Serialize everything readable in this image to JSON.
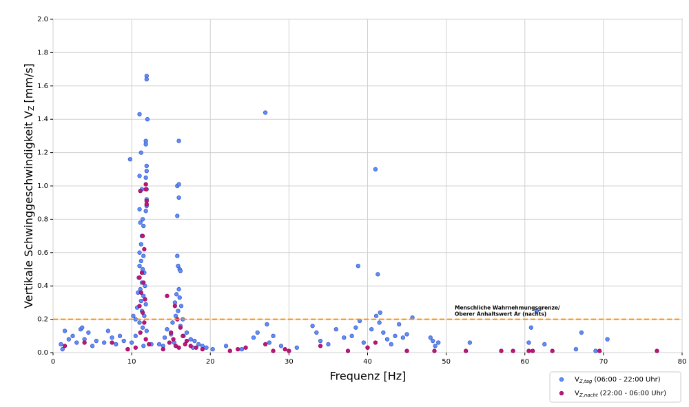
{
  "chart_data": {
    "type": "scatter",
    "x_label": "Frequenz [Hz]",
    "y_label": {
      "text": "Vertikale Schwinggeschwindigkeit V",
      "sub": "Z",
      "unit": "[mm/s]"
    },
    "xlim": [
      0,
      80
    ],
    "xticks": [
      0,
      10,
      20,
      30,
      40,
      50,
      60,
      70,
      80
    ],
    "ylim": [
      0,
      2
    ],
    "yticks": [
      {
        "value": 0,
        "label": "0.0"
      },
      0.2,
      0.4,
      0.6,
      0.8,
      {
        "value": 1,
        "label": "1.0"
      },
      1.2,
      1.4,
      1.6,
      1.8,
      {
        "value": 2,
        "label": "2.0"
      }
    ],
    "grid": true,
    "legend": "below right",
    "threshold": {
      "value": 0.2,
      "color": "#ff8c00",
      "label": [
        "Menschliche Wahrnehmungsgrenze/",
        "Oberer Anhaltswert Ar (nachts)"
      ]
    },
    "series": [
      {
        "name": "V",
        "name_sub": "Z,tag",
        "name_suffix": "(06:00 - 22:00 Uhr)",
        "color": "#5b8ff9",
        "edge": "#3a4fc0",
        "x": [
          11,
          11.9,
          11.9,
          12,
          11.8,
          11.8,
          9.8,
          11.2,
          11.9,
          11.9,
          11.8,
          11.9,
          11.9,
          11.9,
          11.8,
          11,
          11.3,
          11,
          11.4,
          11.5,
          11.1,
          11.3,
          11.2,
          11,
          11.5,
          11.2,
          11,
          11.4,
          11.6,
          10.9,
          11.3,
          11.7,
          11.1,
          10.8,
          11.5,
          11.2,
          11.8,
          10.7,
          11.3,
          11.6,
          10.2,
          10.5,
          11,
          11.4,
          11.9,
          10.5,
          10,
          11.5,
          9.5,
          12.5,
          16,
          15.8,
          16,
          16,
          15.8,
          15.8,
          15.9,
          16.1,
          16.2,
          16,
          15.7,
          16.1,
          15.5,
          16.3,
          15.9,
          15.6,
          16.5,
          15.2,
          16.2,
          14.5,
          17,
          15,
          16.6,
          14.2,
          17.5,
          18,
          15.4,
          18.5,
          19,
          14,
          19.5,
          20.3,
          17.8,
          13.5,
          1,
          1.5,
          2,
          2.5,
          3,
          3.5,
          4,
          4.5,
          5,
          5.5,
          6.5,
          7,
          7.5,
          8,
          8.5,
          9,
          3.7,
          1.2,
          22,
          24,
          25.5,
          26,
          27,
          27.2,
          27.5,
          28,
          29,
          31,
          33,
          33.5,
          34,
          35,
          36,
          37,
          38,
          38.8,
          41,
          41.3,
          41.6,
          41.1,
          39,
          40.5,
          41.5,
          42,
          42.5,
          43,
          43.5,
          44,
          44.5,
          45,
          45.7,
          39.5,
          40,
          38.5,
          48,
          48.3,
          48.6,
          49,
          53,
          60.5,
          60.8,
          61.5,
          62.5,
          66.5,
          67.2,
          70.5,
          69
        ],
        "values": [
          1.43,
          1.66,
          1.64,
          1.4,
          1.27,
          1.25,
          1.16,
          1.2,
          1.12,
          1.09,
          1.05,
          0.98,
          0.92,
          0.88,
          0.85,
          1.06,
          0.98,
          0.86,
          0.8,
          0.76,
          0.78,
          0.7,
          0.65,
          0.6,
          0.58,
          0.55,
          0.52,
          0.5,
          0.48,
          0.45,
          0.42,
          0.4,
          0.38,
          0.36,
          0.34,
          0.31,
          0.29,
          0.27,
          0.25,
          0.22,
          0.22,
          0.2,
          0.18,
          0.15,
          0.13,
          0.1,
          0.06,
          0.04,
          0.02,
          0.05,
          1.27,
          1,
          1.01,
          0.93,
          0.82,
          0.58,
          0.52,
          0.5,
          0.49,
          0.38,
          0.35,
          0.33,
          0.3,
          0.28,
          0.25,
          0.22,
          0.2,
          0.18,
          0.16,
          0.14,
          0.12,
          0.11,
          0.1,
          0.09,
          0.08,
          0.07,
          0.06,
          0.05,
          0.04,
          0.04,
          0.03,
          0.02,
          0.03,
          0.05,
          0.05,
          0.13,
          0.08,
          0.1,
          0.06,
          0.14,
          0.08,
          0.12,
          0.04,
          0.07,
          0.06,
          0.13,
          0.09,
          0.05,
          0.1,
          0.07,
          0.15,
          0.02,
          0.04,
          0.02,
          0.09,
          0.12,
          1.44,
          0.17,
          0.06,
          0.1,
          0.04,
          0.03,
          0.16,
          0.12,
          0.07,
          0.05,
          0.14,
          0.09,
          0.1,
          0.52,
          1.1,
          0.47,
          0.24,
          0.22,
          0.19,
          0.14,
          0.18,
          0.12,
          0.08,
          0.05,
          0.1,
          0.17,
          0.09,
          0.11,
          0.21,
          0.06,
          0.03,
          0.15,
          0.09,
          0.07,
          0.04,
          0.06,
          0.06,
          0.06,
          0.15,
          0.25,
          0.05,
          0.02,
          0.12,
          0.08,
          0.01
        ]
      },
      {
        "name": "V",
        "name_sub": "Z,nacht",
        "name_suffix": "(22:00 - 06:00 Uhr)",
        "color": "#c2137a",
        "edge": "#8a0d57",
        "x": [
          11.8,
          11.8,
          11.1,
          11.9,
          11.9,
          11.4,
          11.6,
          11.3,
          11,
          11.5,
          11.2,
          11.7,
          11,
          11.4,
          11.6,
          11.1,
          11.8,
          10.5,
          12.2,
          14.5,
          15.5,
          15.8,
          16.2,
          15,
          16.5,
          15.3,
          17,
          14.8,
          16.8,
          17.5,
          18.2,
          14,
          19,
          15.6,
          16,
          1.5,
          4,
          7.5,
          9.5,
          22.5,
          23.5,
          24.5,
          27,
          28,
          29.5,
          30,
          34,
          37.5,
          40,
          41,
          45,
          48.5,
          52.5,
          57,
          58.5,
          60.5,
          61,
          63.5,
          69.5,
          76.8
        ],
        "values": [
          1.01,
          0.98,
          0.97,
          0.91,
          0.89,
          0.7,
          0.62,
          0.48,
          0.45,
          0.42,
          0.36,
          0.32,
          0.28,
          0.24,
          0.18,
          0.12,
          0.08,
          0.03,
          0.05,
          0.34,
          0.28,
          0.2,
          0.15,
          0.12,
          0.1,
          0.08,
          0.07,
          0.06,
          0.05,
          0.04,
          0.03,
          0.02,
          0.02,
          0.04,
          0.03,
          0.04,
          0.06,
          0.06,
          0.02,
          0.01,
          0.02,
          0.03,
          0.05,
          0.01,
          0.02,
          0.01,
          0.04,
          0.01,
          0.03,
          0.06,
          0.01,
          0.01,
          0.01,
          0.01,
          0.01,
          0.01,
          0.01,
          0.01,
          0.01,
          0.01
        ]
      }
    ]
  }
}
